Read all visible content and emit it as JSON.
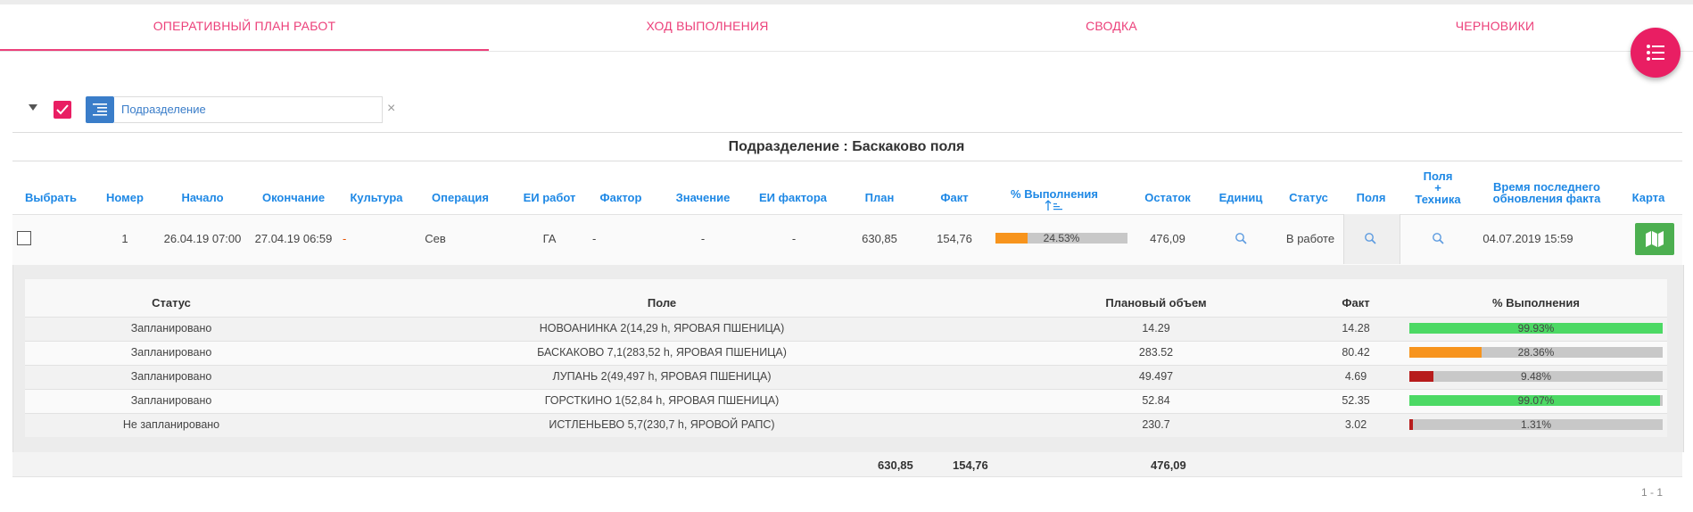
{
  "tabs": [
    {
      "label": "ОПЕРАТИВНЫЙ ПЛАН РАБОТ"
    },
    {
      "label": "ХОД ВЫПОЛНЕНИЯ"
    },
    {
      "label": "СВОДКА"
    },
    {
      "label": "ЧЕРНОВИКИ"
    }
  ],
  "filter": {
    "group_field": "Подразделение",
    "clear_symbol": "×"
  },
  "group_title": "Подразделение : Баскаково поля",
  "columns": {
    "select": "Выбрать",
    "number": "Номер",
    "start": "Начало",
    "end": "Окончание",
    "culture": "Культура",
    "operation": "Операция",
    "work_unit": "ЕИ работ",
    "factor": "Фактор",
    "value": "Значение",
    "factor_unit": "ЕИ фактора",
    "plan": "План",
    "fact": "Факт",
    "percent": "% Выполнения",
    "rest": "Остаток",
    "units": "Единиц",
    "status": "Статус",
    "fields": "Поля",
    "fields_tech_1": "Поля",
    "fields_tech_2": "+",
    "fields_tech_3": "Техника",
    "last_update_1": "Время последнего",
    "last_update_2": "обновления факта",
    "map": "Карта"
  },
  "main_row": {
    "number": "1",
    "start": "26.04.19 07:00",
    "end": "27.04.19 06:59",
    "culture": "-",
    "operation": "Сев",
    "work_unit": "ГА",
    "factor": "-",
    "value": "-",
    "factor_unit": "-",
    "plan": "630,85",
    "fact": "154,76",
    "percent_label": "24.53%",
    "percent_value": 24.53,
    "rest": "476,09",
    "status": "В работе",
    "last_update": "04.07.2019 15:59"
  },
  "nested": {
    "headers": {
      "status": "Статус",
      "field": "Поле",
      "plan_volume": "Плановый объем",
      "fact": "Факт",
      "percent": "% Выполнения"
    },
    "rows": [
      {
        "status": "Запланировано",
        "field": "НОВОАНИНКА 2(14,29 h, ЯРОВАЯ ПШЕНИЦА)",
        "plan": "14.29",
        "fact": "14.28",
        "percent_label": "99.93%",
        "percent_value": 99.93,
        "color": "#4cd964"
      },
      {
        "status": "Запланировано",
        "field": "БАСКАКОВО 7,1(283,52 h, ЯРОВАЯ ПШЕНИЦА)",
        "plan": "283.52",
        "fact": "80.42",
        "percent_label": "28.36%",
        "percent_value": 28.36,
        "color": "#f7941d"
      },
      {
        "status": "Запланировано",
        "field": "ЛУПАНЬ 2(49,497 h, ЯРОВАЯ ПШЕНИЦА)",
        "plan": "49.497",
        "fact": "4.69",
        "percent_label": "9.48%",
        "percent_value": 9.48,
        "color": "#b71c1c"
      },
      {
        "status": "Запланировано",
        "field": "ГОРСТКИНО 1(52,84 h, ЯРОВАЯ ПШЕНИЦА)",
        "plan": "52.84",
        "fact": "52.35",
        "percent_label": "99.07%",
        "percent_value": 99.07,
        "color": "#4cd964"
      },
      {
        "status": "Не запланировано",
        "field": "ИСТЛЕНЬЕВО 5,7(230,7 h, ЯРОВОЙ РАПС)",
        "plan": "230.7",
        "fact": "3.02",
        "percent_label": "1.31%",
        "percent_value": 1.31,
        "color": "#b71c1c"
      }
    ]
  },
  "footer": {
    "plan": "630,85",
    "fact": "154,76",
    "rest": "476,09"
  },
  "pager": "1 - 1",
  "colors": {
    "accent": "#e91e63",
    "header_blue": "#1e88e5",
    "progress_orange": "#f7941d",
    "map_green": "#4caf50"
  },
  "icons": {
    "fab": "list-icon",
    "group": "indent-icon",
    "search": "search-icon",
    "map": "map-icon",
    "sort": "sort-asc-icon"
  }
}
